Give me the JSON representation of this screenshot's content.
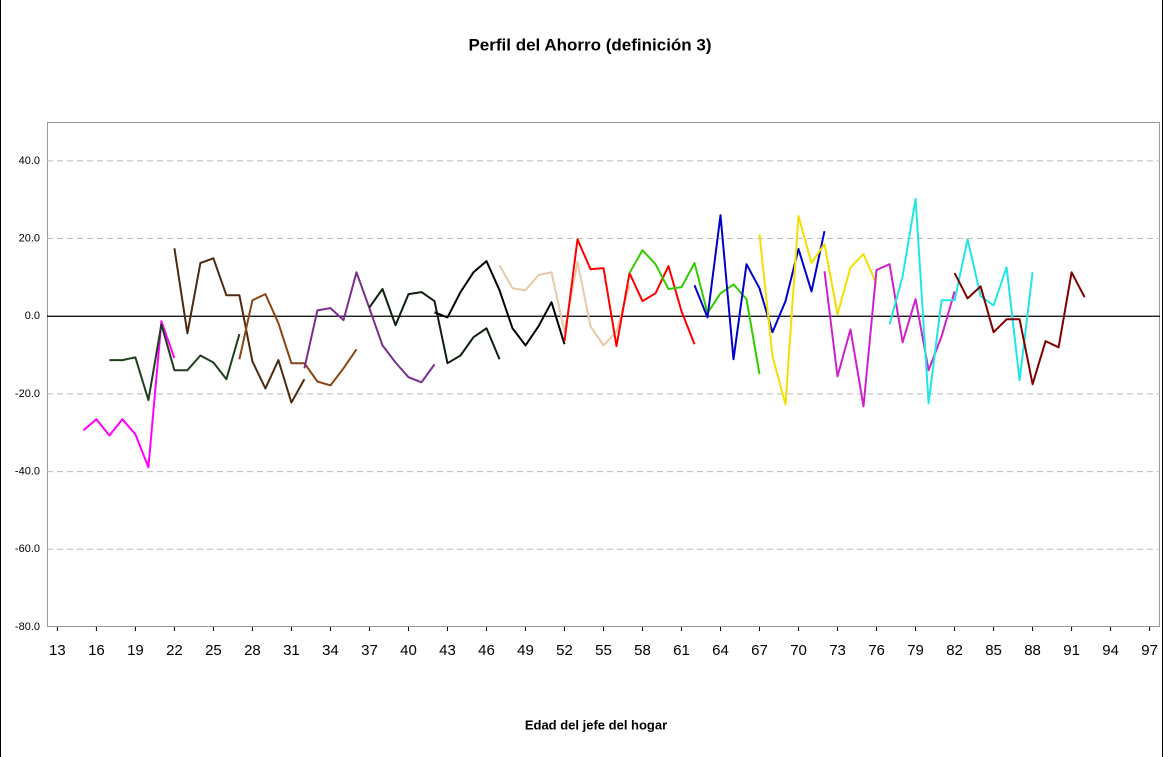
{
  "chart_data": {
    "type": "line",
    "title": "Perfil del Ahorro (definición 3)",
    "x_label": "Edad del jefe del hogar",
    "xlim": [
      12.2,
      97.8
    ],
    "xticks": [
      13,
      16,
      19,
      22,
      25,
      28,
      31,
      34,
      37,
      40,
      43,
      46,
      49,
      52,
      55,
      58,
      61,
      64,
      67,
      70,
      73,
      76,
      79,
      82,
      85,
      88,
      91,
      94,
      97
    ],
    "ylim": [
      -80,
      50
    ],
    "yticks": [
      {
        "value": -80,
        "label": "-80.0"
      },
      {
        "value": -60,
        "label": "-60.0"
      },
      {
        "value": -40,
        "label": "-40.0"
      },
      {
        "value": -20,
        "label": "-20.0"
      },
      {
        "value": 0,
        "label": "0.0"
      },
      {
        "value": 20,
        "label": "20.0"
      },
      {
        "value": 40,
        "label": "40.0"
      }
    ],
    "grid": true,
    "series": [
      {
        "color": "#ff00ff",
        "x": [
          15,
          16,
          17,
          18,
          19,
          20,
          21,
          22
        ],
        "values": [
          -29.4,
          -26.5,
          -30.7,
          -26.5,
          -30.4,
          -38.9,
          -1.3,
          -10.8
        ]
      },
      {
        "color": "#1f3d1f",
        "x": [
          17,
          18,
          19,
          20,
          21,
          22,
          23,
          24,
          25,
          26,
          27
        ],
        "values": [
          -11.3,
          -11.3,
          -10.6,
          -21.6,
          -2.1,
          -13.9,
          -13.9,
          -10.1,
          -11.9,
          -16.2,
          -4.6
        ]
      },
      {
        "color": "#4d2a10",
        "x": [
          22,
          23,
          24,
          25,
          26,
          27,
          28,
          29,
          30,
          31,
          32
        ],
        "values": [
          17.5,
          -4.4,
          13.7,
          14.9,
          5.4,
          5.4,
          -11.6,
          -18.6,
          -11.3,
          -22.2,
          -16.2
        ]
      },
      {
        "color": "#8b4513",
        "x": [
          27,
          28,
          29,
          30,
          31,
          32,
          33,
          34,
          35,
          36
        ],
        "values": [
          -11.1,
          4.1,
          5.7,
          -1.8,
          -12.1,
          -12.1,
          -16.8,
          -17.8,
          -13.4,
          -8.5
        ]
      },
      {
        "color": "#7a2f8c",
        "x": [
          32,
          33,
          34,
          35,
          36,
          37,
          38,
          39,
          40,
          41,
          42
        ],
        "values": [
          -13.4,
          1.5,
          2.1,
          -1.0,
          11.3,
          2.0,
          -7.5,
          -11.9,
          -15.7,
          -17.0,
          -12.4
        ]
      },
      {
        "color": "#0d1f0d",
        "x": [
          37,
          38,
          39,
          40,
          41,
          42,
          43,
          44,
          45,
          46,
          47
        ],
        "values": [
          2.3,
          7.0,
          -2.3,
          5.7,
          6.2,
          3.9,
          -12.1,
          -10.1,
          -5.4,
          -3.1,
          -11.1
        ]
      },
      {
        "color": "#000000",
        "x": [
          42,
          43,
          44,
          45,
          46,
          47,
          48,
          49,
          50,
          51,
          52
        ],
        "values": [
          1.0,
          -0.3,
          6.2,
          11.3,
          14.2,
          6.7,
          -3.1,
          -7.5,
          -2.6,
          3.6,
          -7.2
        ]
      },
      {
        "color": "#e8c9a8",
        "x": [
          47,
          48,
          49,
          50,
          51,
          52,
          53,
          54,
          55,
          56,
          57
        ],
        "values": [
          13.1,
          7.2,
          6.7,
          10.6,
          11.3,
          -4.0,
          14.0,
          -2.6,
          -7.5,
          -4.0,
          8.0
        ]
      },
      {
        "color": "#ff0000",
        "x": [
          52,
          53,
          54,
          55,
          56,
          57,
          58,
          59,
          60,
          61,
          62
        ],
        "values": [
          -6.4,
          19.8,
          12.1,
          12.4,
          -7.7,
          11.1,
          3.9,
          5.9,
          12.9,
          1.3,
          -7.2
        ]
      },
      {
        "color": "#33cc00",
        "x": [
          57,
          58,
          59,
          60,
          61,
          62,
          63,
          64,
          65,
          66,
          67
        ],
        "values": [
          11.1,
          17.0,
          13.4,
          7.0,
          7.5,
          13.7,
          0.8,
          5.9,
          8.2,
          4.4,
          -14.9
        ]
      },
      {
        "color": "#0000cc",
        "x": [
          62,
          63,
          64,
          65,
          66,
          67,
          68,
          69,
          70,
          71,
          72
        ],
        "values": [
          8.0,
          -0.3,
          26.0,
          -11.1,
          13.4,
          7.2,
          -4.1,
          3.9,
          17.3,
          6.4,
          21.9
        ]
      },
      {
        "color": "#f2e000",
        "x": [
          67,
          68,
          69,
          70,
          71,
          72,
          73,
          74,
          75,
          76
        ],
        "values": [
          21.1,
          -10.3,
          -22.7,
          25.8,
          13.7,
          18.6,
          0.5,
          12.6,
          16.0,
          8.2
        ]
      },
      {
        "color": "#cc22cc",
        "x": [
          72,
          73,
          74,
          75,
          76,
          77,
          78,
          79,
          80,
          81,
          82
        ],
        "values": [
          11.6,
          -15.5,
          -3.4,
          -23.2,
          11.9,
          13.4,
          -6.7,
          4.4,
          -13.9,
          -5.2,
          6.4
        ]
      },
      {
        "color": "#22e6e6",
        "x": [
          77,
          78,
          79,
          80,
          81,
          82,
          83,
          84,
          85,
          86,
          87,
          88
        ],
        "values": [
          -2.1,
          10.3,
          30.2,
          -22.4,
          4.1,
          4.1,
          19.8,
          5.2,
          2.8,
          12.6,
          -16.5,
          11.3
        ]
      },
      {
        "color": "#800000",
        "x": [
          82,
          83,
          84,
          85,
          86,
          87,
          88,
          89,
          90,
          91,
          92
        ],
        "values": [
          11.1,
          4.6,
          7.7,
          -4.1,
          -0.8,
          -0.8,
          -17.5,
          -6.4,
          -8.0,
          11.3,
          4.9
        ]
      }
    ]
  }
}
